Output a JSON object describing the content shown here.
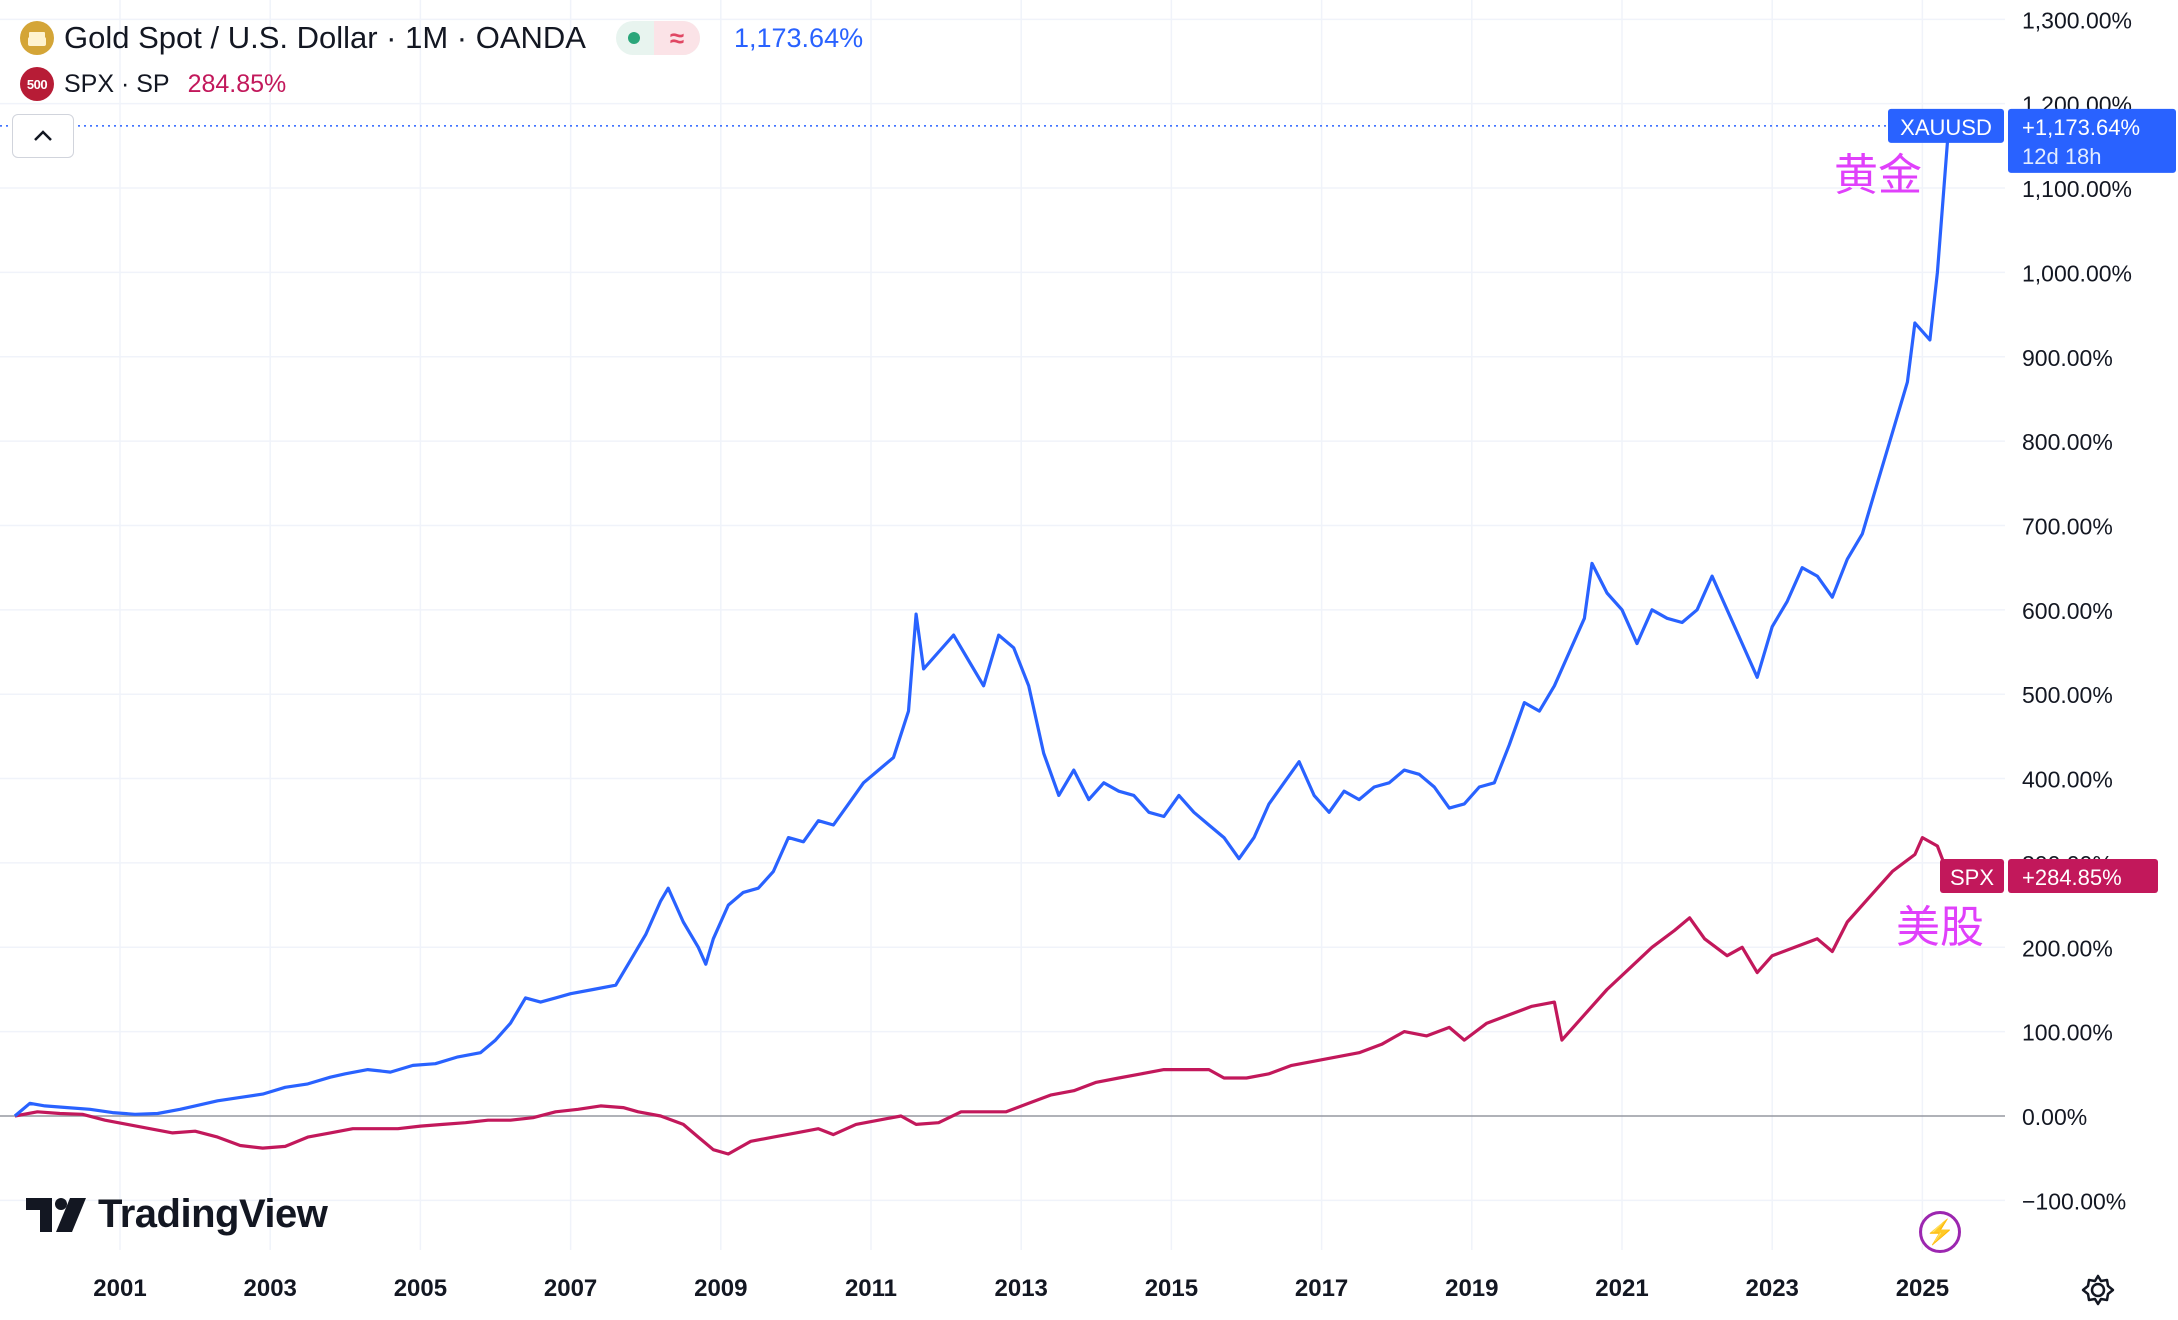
{
  "legend": {
    "symbol1": "Gold Spot / U.S. Dollar · 1M · OANDA",
    "symbol1_value": "1,173.64%",
    "symbol2": "SPX · SP",
    "symbol2_value": "284.85%",
    "symbol2_icon_text": "500",
    "wave_symbol": "≈"
  },
  "brand": "TradingView",
  "icons": {
    "collapse": "chevron-up-icon",
    "flash": "lightning-icon",
    "settings": "gear-icon"
  },
  "colors": {
    "gold_line": "#2962ff",
    "spx_line": "#c2185b",
    "annotation": "#e040fb",
    "zero_line": "#9598a1",
    "grid": "#f0f3fa"
  },
  "chart_data": {
    "type": "line",
    "x_ticks": [
      "2001",
      "2003",
      "2005",
      "2007",
      "2009",
      "2011",
      "2013",
      "2015",
      "2017",
      "2019",
      "2021",
      "2023",
      "2025"
    ],
    "y_ticks": [
      "1,300.00%",
      "1,200.00%",
      "1,100.00%",
      "1,000.00%",
      "900.00%",
      "800.00%",
      "700.00%",
      "600.00%",
      "500.00%",
      "400.00%",
      "300.00%",
      "200.00%",
      "100.00%",
      "0.00%",
      "−100.00%"
    ],
    "ylim": [
      -100,
      1300
    ],
    "xlim": [
      1999.55,
      2026.0
    ],
    "grid": true,
    "series": [
      {
        "name": "XAUUSD",
        "label": "+1,173.64%",
        "countdown": "12d 18h",
        "annotation": "黄金",
        "points": [
          [
            1999.6,
            0
          ],
          [
            1999.8,
            15
          ],
          [
            2000.0,
            12
          ],
          [
            2000.3,
            10
          ],
          [
            2000.6,
            8
          ],
          [
            2000.9,
            4
          ],
          [
            2001.2,
            2
          ],
          [
            2001.5,
            3
          ],
          [
            2001.8,
            8
          ],
          [
            2002.0,
            12
          ],
          [
            2002.3,
            18
          ],
          [
            2002.6,
            22
          ],
          [
            2002.9,
            26
          ],
          [
            2003.2,
            34
          ],
          [
            2003.5,
            38
          ],
          [
            2003.8,
            46
          ],
          [
            2004.0,
            50
          ],
          [
            2004.3,
            55
          ],
          [
            2004.6,
            52
          ],
          [
            2004.9,
            60
          ],
          [
            2005.2,
            62
          ],
          [
            2005.5,
            70
          ],
          [
            2005.8,
            75
          ],
          [
            2006.0,
            90
          ],
          [
            2006.2,
            110
          ],
          [
            2006.4,
            140
          ],
          [
            2006.6,
            135
          ],
          [
            2006.8,
            140
          ],
          [
            2007.0,
            145
          ],
          [
            2007.3,
            150
          ],
          [
            2007.6,
            155
          ],
          [
            2007.8,
            185
          ],
          [
            2008.0,
            215
          ],
          [
            2008.2,
            255
          ],
          [
            2008.3,
            270
          ],
          [
            2008.5,
            230
          ],
          [
            2008.7,
            200
          ],
          [
            2008.8,
            180
          ],
          [
            2008.9,
            210
          ],
          [
            2009.1,
            250
          ],
          [
            2009.3,
            265
          ],
          [
            2009.5,
            270
          ],
          [
            2009.7,
            290
          ],
          [
            2009.9,
            330
          ],
          [
            2010.1,
            325
          ],
          [
            2010.3,
            350
          ],
          [
            2010.5,
            345
          ],
          [
            2010.7,
            370
          ],
          [
            2010.9,
            395
          ],
          [
            2011.1,
            410
          ],
          [
            2011.3,
            425
          ],
          [
            2011.5,
            480
          ],
          [
            2011.6,
            595
          ],
          [
            2011.7,
            530
          ],
          [
            2011.9,
            550
          ],
          [
            2012.1,
            570
          ],
          [
            2012.3,
            540
          ],
          [
            2012.5,
            510
          ],
          [
            2012.7,
            570
          ],
          [
            2012.9,
            555
          ],
          [
            2013.1,
            510
          ],
          [
            2013.3,
            430
          ],
          [
            2013.5,
            380
          ],
          [
            2013.7,
            410
          ],
          [
            2013.9,
            375
          ],
          [
            2014.1,
            395
          ],
          [
            2014.3,
            385
          ],
          [
            2014.5,
            380
          ],
          [
            2014.7,
            360
          ],
          [
            2014.9,
            355
          ],
          [
            2015.1,
            380
          ],
          [
            2015.3,
            360
          ],
          [
            2015.5,
            345
          ],
          [
            2015.7,
            330
          ],
          [
            2015.9,
            305
          ],
          [
            2016.1,
            330
          ],
          [
            2016.3,
            370
          ],
          [
            2016.5,
            395
          ],
          [
            2016.7,
            420
          ],
          [
            2016.9,
            380
          ],
          [
            2017.1,
            360
          ],
          [
            2017.3,
            385
          ],
          [
            2017.5,
            375
          ],
          [
            2017.7,
            390
          ],
          [
            2017.9,
            395
          ],
          [
            2018.1,
            410
          ],
          [
            2018.3,
            405
          ],
          [
            2018.5,
            390
          ],
          [
            2018.7,
            365
          ],
          [
            2018.9,
            370
          ],
          [
            2019.1,
            390
          ],
          [
            2019.3,
            395
          ],
          [
            2019.5,
            440
          ],
          [
            2019.7,
            490
          ],
          [
            2019.9,
            480
          ],
          [
            2020.1,
            510
          ],
          [
            2020.3,
            550
          ],
          [
            2020.5,
            590
          ],
          [
            2020.6,
            655
          ],
          [
            2020.8,
            620
          ],
          [
            2021.0,
            600
          ],
          [
            2021.2,
            560
          ],
          [
            2021.4,
            600
          ],
          [
            2021.6,
            590
          ],
          [
            2021.8,
            585
          ],
          [
            2022.0,
            600
          ],
          [
            2022.2,
            640
          ],
          [
            2022.4,
            600
          ],
          [
            2022.6,
            560
          ],
          [
            2022.8,
            520
          ],
          [
            2023.0,
            580
          ],
          [
            2023.2,
            610
          ],
          [
            2023.4,
            650
          ],
          [
            2023.6,
            640
          ],
          [
            2023.8,
            615
          ],
          [
            2024.0,
            660
          ],
          [
            2024.2,
            690
          ],
          [
            2024.4,
            750
          ],
          [
            2024.6,
            810
          ],
          [
            2024.8,
            870
          ],
          [
            2024.9,
            940
          ],
          [
            2025.1,
            920
          ],
          [
            2025.2,
            1000
          ],
          [
            2025.35,
            1173.64
          ]
        ]
      },
      {
        "name": "SPX",
        "label": "+284.85%",
        "annotation": "美股",
        "points": [
          [
            1999.6,
            0
          ],
          [
            1999.9,
            5
          ],
          [
            2000.2,
            3
          ],
          [
            2000.5,
            2
          ],
          [
            2000.8,
            -5
          ],
          [
            2001.1,
            -10
          ],
          [
            2001.4,
            -15
          ],
          [
            2001.7,
            -20
          ],
          [
            2002.0,
            -18
          ],
          [
            2002.3,
            -25
          ],
          [
            2002.6,
            -35
          ],
          [
            2002.9,
            -38
          ],
          [
            2003.2,
            -36
          ],
          [
            2003.5,
            -25
          ],
          [
            2003.8,
            -20
          ],
          [
            2004.1,
            -15
          ],
          [
            2004.4,
            -15
          ],
          [
            2004.7,
            -15
          ],
          [
            2005.0,
            -12
          ],
          [
            2005.3,
            -10
          ],
          [
            2005.6,
            -8
          ],
          [
            2005.9,
            -5
          ],
          [
            2006.2,
            -5
          ],
          [
            2006.5,
            -2
          ],
          [
            2006.8,
            5
          ],
          [
            2007.1,
            8
          ],
          [
            2007.4,
            12
          ],
          [
            2007.7,
            10
          ],
          [
            2007.9,
            5
          ],
          [
            2008.2,
            0
          ],
          [
            2008.5,
            -10
          ],
          [
            2008.7,
            -25
          ],
          [
            2008.9,
            -40
          ],
          [
            2009.1,
            -45
          ],
          [
            2009.4,
            -30
          ],
          [
            2009.7,
            -25
          ],
          [
            2010.0,
            -20
          ],
          [
            2010.3,
            -15
          ],
          [
            2010.5,
            -22
          ],
          [
            2010.8,
            -10
          ],
          [
            2011.1,
            -5
          ],
          [
            2011.4,
            0
          ],
          [
            2011.6,
            -10
          ],
          [
            2011.9,
            -8
          ],
          [
            2012.2,
            5
          ],
          [
            2012.5,
            5
          ],
          [
            2012.8,
            5
          ],
          [
            2013.1,
            15
          ],
          [
            2013.4,
            25
          ],
          [
            2013.7,
            30
          ],
          [
            2014.0,
            40
          ],
          [
            2014.3,
            45
          ],
          [
            2014.6,
            50
          ],
          [
            2014.9,
            55
          ],
          [
            2015.2,
            55
          ],
          [
            2015.5,
            55
          ],
          [
            2015.7,
            45
          ],
          [
            2016.0,
            45
          ],
          [
            2016.3,
            50
          ],
          [
            2016.6,
            60
          ],
          [
            2016.9,
            65
          ],
          [
            2017.2,
            70
          ],
          [
            2017.5,
            75
          ],
          [
            2017.8,
            85
          ],
          [
            2018.1,
            100
          ],
          [
            2018.4,
            95
          ],
          [
            2018.7,
            105
          ],
          [
            2018.9,
            90
          ],
          [
            2019.2,
            110
          ],
          [
            2019.5,
            120
          ],
          [
            2019.8,
            130
          ],
          [
            2020.1,
            135
          ],
          [
            2020.2,
            90
          ],
          [
            2020.5,
            120
          ],
          [
            2020.8,
            150
          ],
          [
            2021.1,
            175
          ],
          [
            2021.4,
            200
          ],
          [
            2021.7,
            220
          ],
          [
            2021.9,
            235
          ],
          [
            2022.1,
            210
          ],
          [
            2022.4,
            190
          ],
          [
            2022.6,
            200
          ],
          [
            2022.8,
            170
          ],
          [
            2023.0,
            190
          ],
          [
            2023.3,
            200
          ],
          [
            2023.6,
            210
          ],
          [
            2023.8,
            195
          ],
          [
            2024.0,
            230
          ],
          [
            2024.3,
            260
          ],
          [
            2024.6,
            290
          ],
          [
            2024.9,
            310
          ],
          [
            2025.0,
            330
          ],
          [
            2025.2,
            320
          ],
          [
            2025.35,
            284.85
          ]
        ]
      }
    ]
  }
}
